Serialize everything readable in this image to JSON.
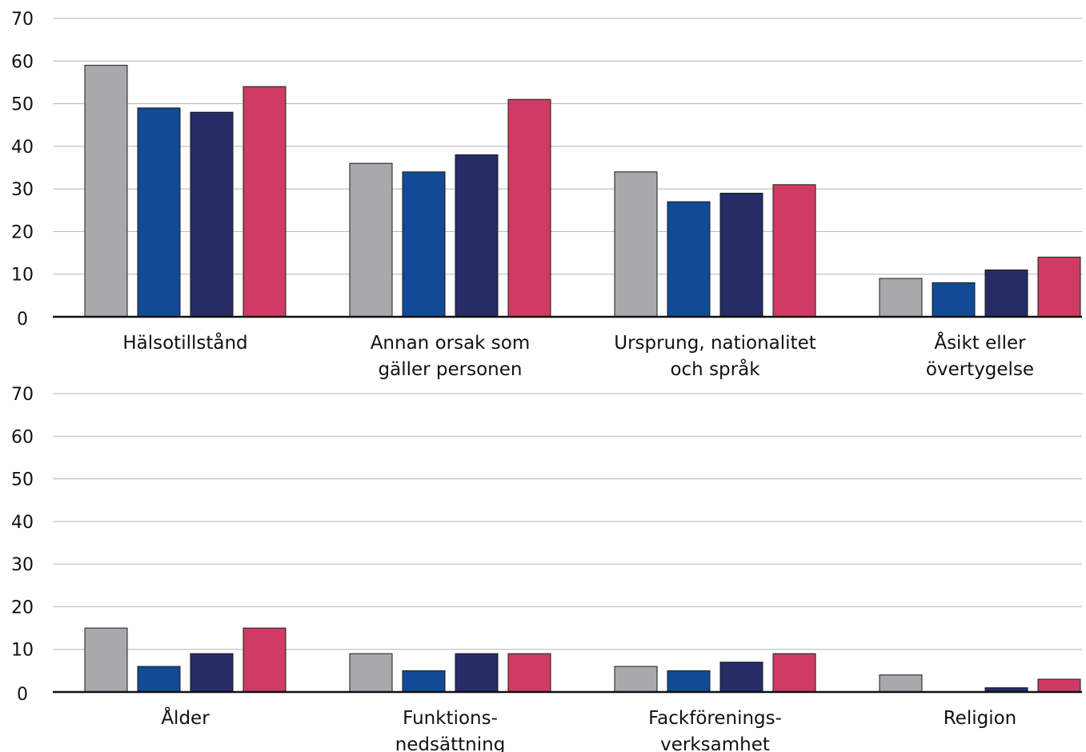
{
  "colors": {
    "gray": "#a7a9ac",
    "blue": "#114a96",
    "navy": "#252c66",
    "pink": "#cf3c63",
    "grid": "#b5b5b5",
    "axis": "#111111",
    "bar_outline": "#1a1a1a"
  },
  "chart_data": [
    {
      "type": "bar",
      "ylim": [
        0,
        70
      ],
      "yticks": [
        0,
        10,
        20,
        30,
        40,
        50,
        60,
        70
      ],
      "grid": true,
      "legend": "none",
      "categories": [
        [
          "Hälsotillstånd"
        ],
        [
          "Annan orsak som",
          "gäller personen"
        ],
        [
          "Ursprung, nationalitet",
          "och språk"
        ],
        [
          "Åsikt eller",
          "övertygelse"
        ]
      ],
      "series": [
        {
          "color": "#a7a9ac",
          "values": [
            59,
            36,
            34,
            9
          ]
        },
        {
          "color": "#114a96",
          "values": [
            49,
            34,
            27,
            8
          ]
        },
        {
          "color": "#252c66",
          "values": [
            48,
            38,
            29,
            11
          ]
        },
        {
          "color": "#cf3c63",
          "values": [
            54,
            51,
            31,
            14
          ]
        }
      ]
    },
    {
      "type": "bar",
      "ylim": [
        0,
        70
      ],
      "yticks": [
        0,
        10,
        20,
        30,
        40,
        50,
        60,
        70
      ],
      "grid": true,
      "legend": "none",
      "categories": [
        [
          "Ålder"
        ],
        [
          "Funktions-",
          "nedsättning"
        ],
        [
          "Fackförenings-",
          "verksamhet"
        ],
        [
          "Religion"
        ]
      ],
      "series": [
        {
          "color": "#a7a9ac",
          "values": [
            15,
            9,
            6,
            4
          ]
        },
        {
          "color": "#114a96",
          "values": [
            6,
            5,
            5,
            0
          ]
        },
        {
          "color": "#252c66",
          "values": [
            9,
            9,
            7,
            1
          ]
        },
        {
          "color": "#cf3c63",
          "values": [
            15,
            9,
            9,
            3
          ]
        }
      ]
    }
  ]
}
